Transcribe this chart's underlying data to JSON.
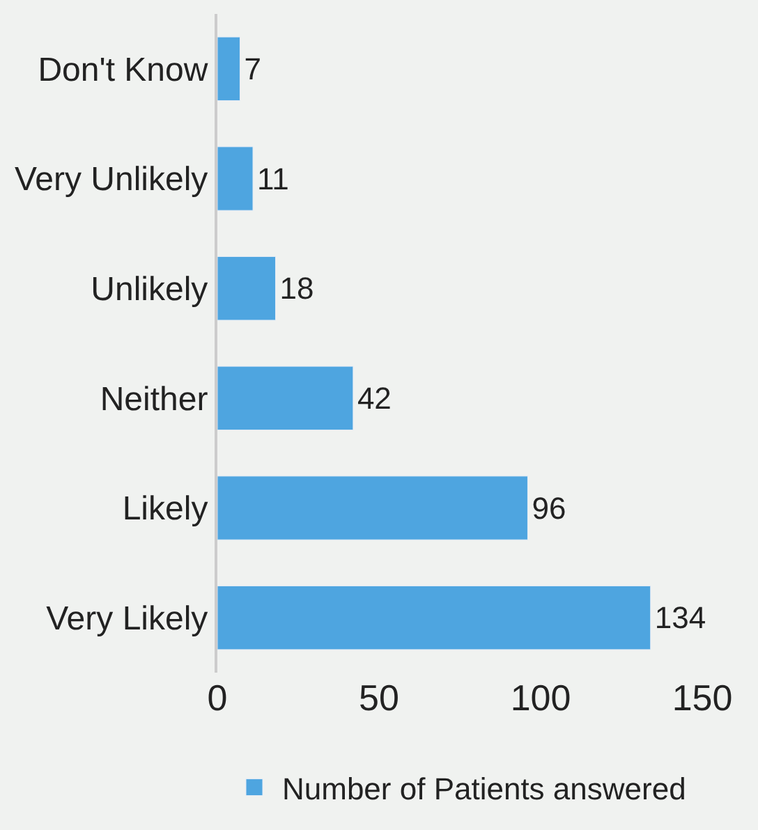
{
  "chart_data": {
    "type": "bar",
    "orientation": "horizontal",
    "categories": [
      "Don't Know",
      "Very Unlikely",
      "Unlikely",
      "Neither",
      "Likely",
      "Very Likely"
    ],
    "series": [
      {
        "name": "Number of Patients answered",
        "color": "#4ea5e0",
        "values": [
          7,
          11,
          18,
          42,
          96,
          134
        ]
      }
    ],
    "xlim": [
      0,
      150
    ],
    "xticks": [
      0,
      50,
      100,
      150
    ],
    "data_labels": true,
    "legend": "bottom",
    "grid": false
  }
}
